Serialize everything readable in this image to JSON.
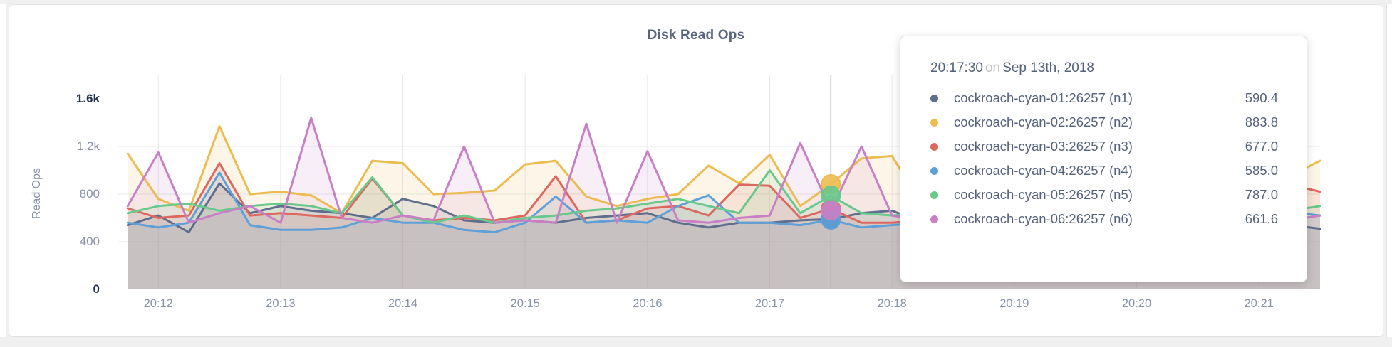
{
  "chart_data": {
    "type": "line",
    "title": "Disk Read Ops",
    "ylabel": "Read Ops",
    "grid": true,
    "legend_position": "tooltip-only",
    "ylim": [
      0,
      1600
    ],
    "y_axis": {
      "ticks": [
        {
          "label": "0",
          "value": 0,
          "end": true
        },
        {
          "label": "400",
          "value": 400,
          "end": false
        },
        {
          "label": "800",
          "value": 800,
          "end": false
        },
        {
          "label": "1.2k",
          "value": 1200,
          "end": false
        },
        {
          "label": "1.6k",
          "value": 1600,
          "end": true
        }
      ]
    },
    "x_axis": {
      "tick_labels": [
        "20:12",
        "20:13",
        "20:14",
        "20:15",
        "20:16",
        "20:17",
        "20:18",
        "20:19",
        "20:20",
        "20:21"
      ],
      "domain_seconds": 590,
      "first_tick_offset_seconds": 20,
      "tick_interval_seconds": 60
    },
    "points": {
      "start_offset_seconds": 5,
      "interval_seconds": 15,
      "count": 40
    },
    "hover": {
      "time_seconds": 350,
      "point_index": 23
    },
    "series": [
      {
        "name": "cockroach-cyan-01:26257 (n1)",
        "color": "#5f6e8c",
        "values": [
          540,
          620,
          480,
          890,
          640,
          700,
          660,
          640,
          600,
          760,
          700,
          580,
          560,
          580,
          560,
          600,
          620,
          640,
          560,
          520,
          560,
          560,
          580,
          590.4,
          640,
          660,
          560,
          540,
          560,
          580,
          560,
          540,
          560,
          520,
          540,
          560,
          500,
          480,
          540,
          510
        ]
      },
      {
        "name": "cockroach-cyan-02:26257 (n2)",
        "color": "#ecbc51",
        "values": [
          1140,
          760,
          660,
          1370,
          800,
          820,
          790,
          640,
          1080,
          1060,
          800,
          810,
          830,
          1050,
          1080,
          780,
          700,
          760,
          800,
          1040,
          890,
          1130,
          700,
          883.8,
          1100,
          1120,
          700,
          650,
          700,
          680,
          660,
          700,
          650,
          640,
          700,
          680,
          900,
          1100,
          950,
          1080
        ]
      },
      {
        "name": "cockroach-cyan-03:26257 (n3)",
        "color": "#dd6860",
        "values": [
          680,
          600,
          620,
          1060,
          620,
          640,
          620,
          600,
          930,
          620,
          580,
          600,
          580,
          620,
          950,
          560,
          580,
          680,
          700,
          620,
          880,
          870,
          600,
          677.0,
          560,
          560,
          580,
          560,
          620,
          600,
          560,
          580,
          560,
          540,
          560,
          580,
          600,
          860,
          880,
          820
        ]
      },
      {
        "name": "cockroach-cyan-04:26257 (n4)",
        "color": "#5ea0d8",
        "values": [
          560,
          520,
          560,
          980,
          540,
          500,
          500,
          520,
          600,
          560,
          560,
          500,
          480,
          560,
          780,
          560,
          580,
          560,
          700,
          790,
          560,
          560,
          540,
          585.0,
          520,
          540,
          560,
          520,
          540,
          560,
          540,
          520,
          540,
          560,
          520,
          540,
          890,
          750,
          650,
          620
        ]
      },
      {
        "name": "cockroach-cyan-05:26257 (n5)",
        "color": "#69c88c",
        "values": [
          640,
          700,
          720,
          660,
          700,
          720,
          700,
          640,
          940,
          620,
          560,
          620,
          560,
          600,
          620,
          660,
          680,
          720,
          760,
          700,
          640,
          1000,
          640,
          787.0,
          640,
          620,
          640,
          660,
          620,
          640,
          620,
          600,
          620,
          640,
          620,
          600,
          620,
          640,
          660,
          700
        ]
      },
      {
        "name": "cockroach-cyan-06:26257 (n6)",
        "color": "#c87fc6",
        "values": [
          700,
          1150,
          560,
          640,
          700,
          560,
          1440,
          600,
          560,
          620,
          580,
          1200,
          560,
          580,
          560,
          1390,
          560,
          1160,
          580,
          560,
          600,
          620,
          1230,
          661.6,
          1200,
          620,
          580,
          560,
          580,
          600,
          560,
          580,
          560,
          580,
          560,
          580,
          560,
          600,
          580,
          620
        ]
      }
    ]
  },
  "tooltip": {
    "time": "20:17:30",
    "connector": "on",
    "date": "Sep 13th, 2018",
    "rows": [
      {
        "label": "cockroach-cyan-01:26257 (n1)",
        "value": "590.4"
      },
      {
        "label": "cockroach-cyan-02:26257 (n2)",
        "value": "883.8"
      },
      {
        "label": "cockroach-cyan-03:26257 (n3)",
        "value": "677.0"
      },
      {
        "label": "cockroach-cyan-04:26257 (n4)",
        "value": "585.0"
      },
      {
        "label": "cockroach-cyan-05:26257 (n5)",
        "value": "787.0"
      },
      {
        "label": "cockroach-cyan-06:26257 (n6)",
        "value": "661.6"
      }
    ]
  },
  "style": {
    "gridline_color": "#e7e7e7",
    "guideline_color": "#b0b0b0",
    "area_fill_opacity": 0.13
  }
}
